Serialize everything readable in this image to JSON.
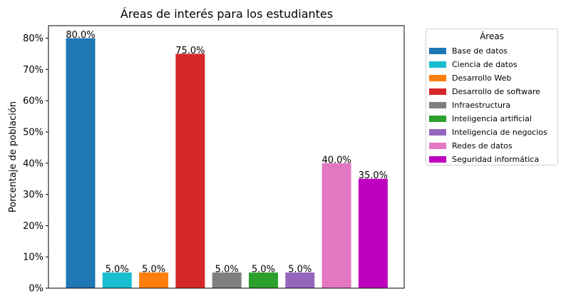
{
  "chart_data": {
    "type": "bar",
    "title": "Áreas de interés para los estudiantes",
    "xlabel": "",
    "ylabel": "Porcentaje de población",
    "ylim": [
      0,
      84
    ],
    "ytick_values": [
      0,
      10,
      20,
      30,
      40,
      50,
      60,
      70,
      80
    ],
    "ytick_labels": [
      "0%",
      "10%",
      "20%",
      "30%",
      "40%",
      "50%",
      "60%",
      "70%",
      "80%"
    ],
    "grid": false,
    "legend": {
      "title": "Áreas",
      "placement": "outside-right"
    },
    "categories": [
      "Base de datos",
      "Ciencia de datos",
      "Desarrollo Web",
      "Desarrollo de software",
      "Infraestructura",
      "Inteligencia artificial",
      "Inteligencia de negocios",
      "Redes de datos",
      "Seguridad informática"
    ],
    "values": [
      80,
      5,
      5,
      75,
      5,
      5,
      5,
      40,
      35
    ],
    "value_labels": [
      "80.0%",
      "5.0%",
      "5.0%",
      "75.0%",
      "5.0%",
      "5.0%",
      "5.0%",
      "40.0%",
      "35.0%"
    ],
    "colors": [
      "#1f77b4",
      "#17becf",
      "#ff7f0e",
      "#d62728",
      "#7f7f7f",
      "#2ca02c",
      "#9467bd",
      "#e377c2",
      "#bf00bf"
    ]
  }
}
